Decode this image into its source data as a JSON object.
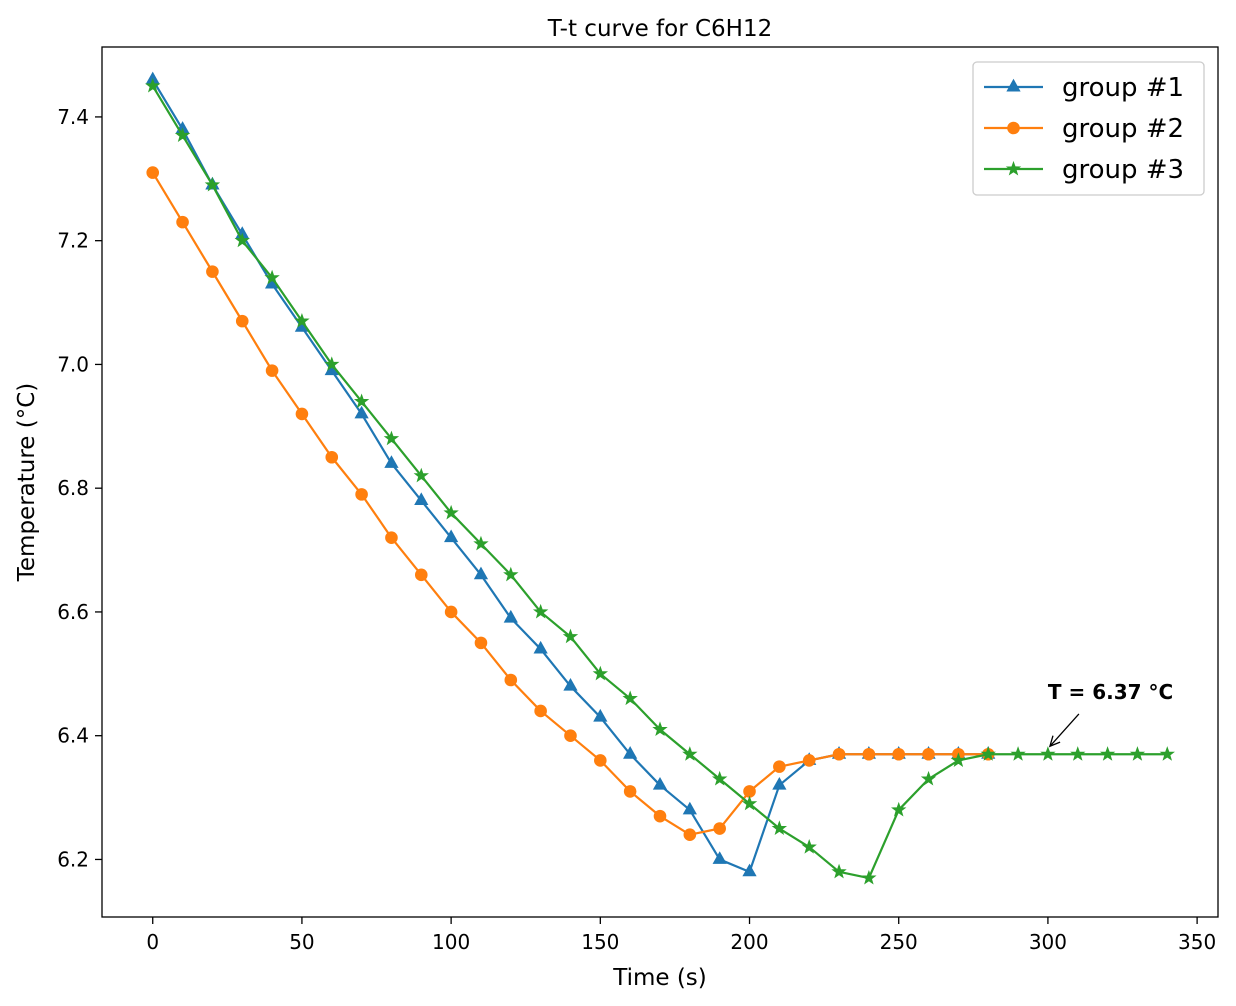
{
  "chart_data": {
    "type": "line",
    "title": "T-t curve for C6H12",
    "xlabel": "Time (s)",
    "ylabel": "Temperature (°C)",
    "xlim": [
      -17,
      357
    ],
    "ylim": [
      6.107,
      7.513
    ],
    "xticks": [
      0,
      50,
      100,
      150,
      200,
      250,
      300,
      350
    ],
    "yticks": [
      6.2,
      6.4,
      6.6,
      6.8,
      7.0,
      7.2,
      7.4
    ],
    "grid": false,
    "legend_position": "top-right",
    "series": [
      {
        "name": "group #1",
        "color": "#1f77b4",
        "marker": "triangle",
        "x": [
          0,
          10,
          20,
          30,
          40,
          50,
          60,
          70,
          80,
          90,
          100,
          110,
          120,
          130,
          140,
          150,
          160,
          170,
          180,
          190,
          200,
          210,
          220,
          230,
          240,
          250,
          260,
          270,
          280
        ],
        "y": [
          7.46,
          7.38,
          7.29,
          7.21,
          7.13,
          7.06,
          6.99,
          6.92,
          6.84,
          6.78,
          6.72,
          6.66,
          6.59,
          6.54,
          6.48,
          6.43,
          6.37,
          6.32,
          6.28,
          6.2,
          6.18,
          6.32,
          6.36,
          6.37,
          6.37,
          6.37,
          6.37,
          6.37,
          6.37
        ]
      },
      {
        "name": "group #2",
        "color": "#ff7f0e",
        "marker": "circle",
        "x": [
          0,
          10,
          20,
          30,
          40,
          50,
          60,
          70,
          80,
          90,
          100,
          110,
          120,
          130,
          140,
          150,
          160,
          170,
          180,
          190,
          200,
          210,
          220,
          230,
          240,
          250,
          260,
          270,
          280
        ],
        "y": [
          7.31,
          7.23,
          7.15,
          7.07,
          6.99,
          6.92,
          6.85,
          6.79,
          6.72,
          6.66,
          6.6,
          6.55,
          6.49,
          6.44,
          6.4,
          6.36,
          6.31,
          6.27,
          6.24,
          6.25,
          6.31,
          6.35,
          6.36,
          6.37,
          6.37,
          6.37,
          6.37,
          6.37,
          6.37
        ]
      },
      {
        "name": "group #3",
        "color": "#2ca02c",
        "marker": "star",
        "x": [
          0,
          10,
          20,
          30,
          40,
          50,
          60,
          70,
          80,
          90,
          100,
          110,
          120,
          130,
          140,
          150,
          160,
          170,
          180,
          190,
          200,
          210,
          220,
          230,
          240,
          250,
          260,
          270,
          280,
          290,
          300,
          310,
          320,
          330,
          340
        ],
        "y": [
          7.45,
          7.37,
          7.29,
          7.2,
          7.14,
          7.07,
          7.0,
          6.94,
          6.88,
          6.82,
          6.76,
          6.71,
          6.66,
          6.6,
          6.56,
          6.5,
          6.46,
          6.41,
          6.37,
          6.33,
          6.29,
          6.25,
          6.22,
          6.18,
          6.17,
          6.28,
          6.33,
          6.36,
          6.37,
          6.37,
          6.37,
          6.37,
          6.37,
          6.37,
          6.37
        ]
      }
    ],
    "annotation": {
      "text": "T = 6.37 °C",
      "point": [
        300,
        6.37
      ],
      "text_anchor_data": [
        300,
        6.44
      ]
    }
  }
}
